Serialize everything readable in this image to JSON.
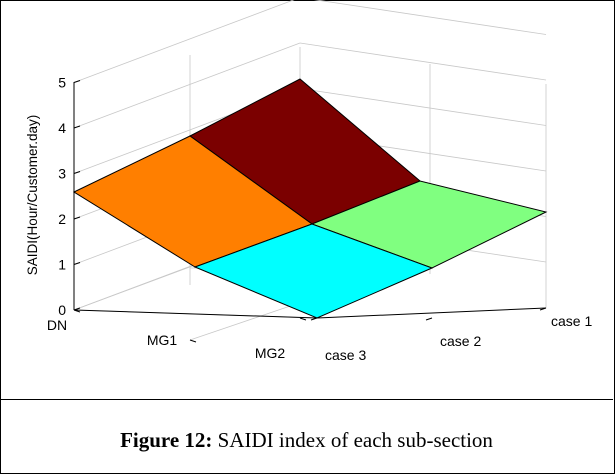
{
  "figure": {
    "caption_label": "Figure 12:",
    "caption_text": " SAIDI index of each sub-section"
  },
  "chart_data": {
    "type": "surface",
    "title": "",
    "zlabel": "SAIDI(Hour/Customer.day)",
    "xlabel": "",
    "ylabel": "",
    "x_categories": [
      "DN",
      "MG1",
      "MG2"
    ],
    "y_categories": [
      "case 1",
      "case 2",
      "case 3"
    ],
    "zlim": [
      0,
      5
    ],
    "z_ticks": [
      0,
      1,
      2,
      3,
      4,
      5
    ],
    "grid": true,
    "values": [
      [
        4.5,
        2.8,
        2.6
      ],
      [
        3.4,
        1.8,
        0.9
      ],
      [
        2.1,
        1.2,
        0.6
      ]
    ],
    "patch_colors": [
      "#7b0000",
      "#80ff80",
      "#ff7f00",
      "#00ffff"
    ]
  }
}
